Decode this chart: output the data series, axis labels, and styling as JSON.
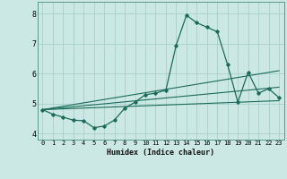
{
  "xlabel": "Humidex (Indice chaleur)",
  "xlim": [
    -0.5,
    23.5
  ],
  "ylim": [
    3.8,
    8.4
  ],
  "yticks": [
    4,
    5,
    6,
    7,
    8
  ],
  "xticks": [
    0,
    1,
    2,
    3,
    4,
    5,
    6,
    7,
    8,
    9,
    10,
    11,
    12,
    13,
    14,
    15,
    16,
    17,
    18,
    19,
    20,
    21,
    22,
    23
  ],
  "xtick_labels": [
    "0",
    "1",
    "2",
    "3",
    "4",
    "5",
    "6",
    "7",
    "8",
    "9",
    "10",
    "11",
    "12",
    "13",
    "14",
    "15",
    "16",
    "17",
    "18",
    "19",
    "20",
    "21",
    "22",
    "23"
  ],
  "bg_color": "#cce8e4",
  "grid_color": "#aacfca",
  "line_color": "#1a6b5a",
  "main_x": [
    0,
    1,
    2,
    3,
    4,
    5,
    6,
    7,
    8,
    9,
    10,
    11,
    12,
    13,
    14,
    15,
    16,
    17,
    18,
    19,
    20,
    21,
    22,
    23
  ],
  "main_y": [
    4.8,
    4.65,
    4.55,
    4.45,
    4.43,
    4.2,
    4.25,
    4.45,
    4.85,
    5.05,
    5.3,
    5.35,
    5.45,
    6.95,
    7.95,
    7.7,
    7.55,
    7.4,
    6.3,
    5.05,
    6.05,
    5.35,
    5.5,
    5.2
  ],
  "trend1_x": [
    0,
    23
  ],
  "trend1_y": [
    4.8,
    5.1
  ],
  "trend2_x": [
    0,
    23
  ],
  "trend2_y": [
    4.8,
    5.55
  ],
  "trend3_x": [
    0,
    23
  ],
  "trend3_y": [
    4.8,
    6.1
  ]
}
